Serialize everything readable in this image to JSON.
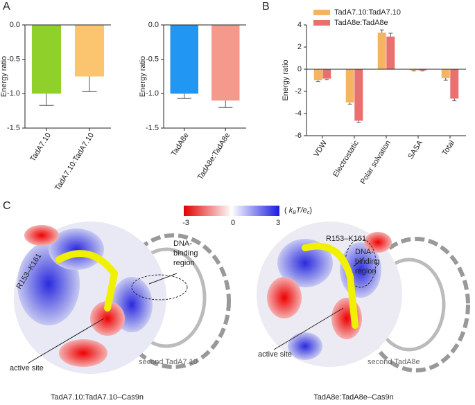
{
  "panel_labels": [
    "A",
    "B",
    "C"
  ],
  "chart_data": [
    {
      "type": "bar",
      "y_label": "Energy ratio",
      "categories": [
        "TadA7.10",
        "TadA7.10:TadA7.10"
      ],
      "values": [
        -1.0,
        -0.75
      ],
      "errors": [
        0.17,
        0.22
      ],
      "colors": [
        "#8fd12a",
        "#fbc46e"
      ],
      "ylim": [
        -1.5,
        0
      ],
      "yticks": [
        {
          "value": 0,
          "label": "0.0"
        },
        -0.5,
        {
          "value": -1,
          "label": "-1.0"
        },
        -1.5
      ]
    },
    {
      "type": "bar",
      "y_label": "Energy ratio",
      "categories": [
        "TadA8e",
        "TadA8e:TadA8e"
      ],
      "values": [
        -1.0,
        -1.1
      ],
      "errors": [
        0.07,
        0.1
      ],
      "colors": [
        "#2196f3",
        "#f5998d"
      ],
      "ylim": [
        -1.5,
        0
      ],
      "yticks": [
        {
          "value": 0,
          "label": "0.0"
        },
        -0.5,
        {
          "value": -1,
          "label": "-1.0"
        },
        -1.5
      ]
    },
    {
      "type": "grouped_bar",
      "y_label": "Energy ratio",
      "categories": [
        "VDW",
        "Electrostatic",
        "Polar solvation",
        "SASA",
        "Total"
      ],
      "series": [
        {
          "name": "TadA7.10:TadA7.10",
          "color": "#f5b461",
          "values": [
            -1.0,
            -3.0,
            3.3,
            -0.1,
            -0.8
          ],
          "errors": [
            0.1,
            0.15,
            0.25,
            0.05,
            0.2
          ]
        },
        {
          "name": "TadA8e:TadA8e",
          "color": "#e8706e",
          "values": [
            -0.85,
            -4.65,
            2.95,
            -0.1,
            -2.65
          ],
          "errors": [
            0.08,
            0.15,
            0.3,
            0.05,
            0.2
          ]
        }
      ],
      "ylim": [
        -6,
        4
      ],
      "yticks": [
        -6,
        -4,
        -2,
        0,
        2,
        4
      ]
    }
  ],
  "panel_c": {
    "colorbar": {
      "ticks": [
        -3,
        0,
        3
      ],
      "unit_parts": [
        "(",
        "k",
        "B",
        "T/e",
        "c",
        ")"
      ]
    },
    "left": {
      "loop": "R153–K161",
      "dna": [
        "DNA-",
        "binding",
        "region"
      ],
      "active": "active site",
      "second": "second TadA7.10",
      "caption": "TadA7.10:TadA7.10–Cas9n"
    },
    "right": {
      "loop": "R153–K161",
      "dna": [
        "DNA-",
        "binding",
        "region"
      ],
      "active": "active site",
      "second": "second TadA8e",
      "caption": "TadA8e:TadA8e–Cas9n"
    }
  }
}
